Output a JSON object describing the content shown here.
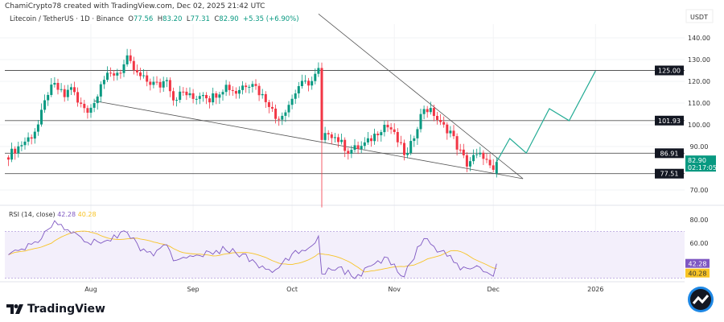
{
  "header": {
    "credit": "ChamiCrypto78 created with TradingView.com, Dec 02, 2025 21:42 UTC",
    "symbol": "Litecoin / TetherUS · 1D · Binance",
    "open_label": "O",
    "open": "77.56",
    "high_label": "H",
    "high": "83.20",
    "low_label": "L",
    "low": "77.31",
    "close_label": "C",
    "close": "82.90",
    "change": "+5.35 (+6.90%)"
  },
  "price_axis": {
    "currency": "USDT",
    "ticks": [
      "140.00",
      "130.00",
      "120.00",
      "110.00",
      "100.00",
      "90.00",
      "70.00"
    ],
    "tick_values": [
      140,
      130,
      120,
      110,
      100,
      90,
      70
    ],
    "levels": [
      {
        "label": "125.00",
        "value": 125
      },
      {
        "label": "101.93",
        "value": 101.93
      },
      {
        "label": "86.91",
        "value": 86.91
      },
      {
        "label": "77.51",
        "value": 77.51
      }
    ],
    "last_price": "82.90",
    "countdown": "02:17:05"
  },
  "time_axis": {
    "ticks": [
      {
        "label": "Aug",
        "date": "2025-08-01"
      },
      {
        "label": "Sep",
        "date": "2025-09-01"
      },
      {
        "label": "Oct",
        "date": "2025-10-01"
      },
      {
        "label": "Nov",
        "date": "2025-11-01"
      },
      {
        "label": "Dec",
        "date": "2025-12-01"
      },
      {
        "label": "2026",
        "date": "2026-01-01"
      }
    ]
  },
  "price_path": [
    [
      "2025-07-07",
      86
    ],
    [
      "2025-07-14",
      95
    ],
    [
      "2025-07-16",
      100
    ],
    [
      "2025-07-19",
      115
    ],
    [
      "2025-07-21",
      118
    ],
    [
      "2025-07-24",
      113
    ],
    [
      "2025-07-26",
      118
    ],
    [
      "2025-07-28",
      110
    ],
    [
      "2025-07-31",
      107
    ],
    [
      "2025-08-02",
      110
    ],
    [
      "2025-08-04",
      120
    ],
    [
      "2025-08-06",
      122
    ],
    [
      "2025-08-10",
      125
    ],
    [
      "2025-08-12",
      130
    ],
    [
      "2025-08-15",
      123
    ],
    [
      "2025-08-18",
      120
    ],
    [
      "2025-08-22",
      118
    ],
    [
      "2025-08-24",
      122
    ],
    [
      "2025-08-26",
      112
    ],
    [
      "2025-08-29",
      115
    ],
    [
      "2025-09-01",
      112
    ],
    [
      "2025-09-04",
      115
    ],
    [
      "2025-09-06",
      112
    ],
    [
      "2025-09-11",
      118
    ],
    [
      "2025-09-14",
      115
    ],
    [
      "2025-09-16",
      118
    ],
    [
      "2025-09-19",
      120
    ],
    [
      "2025-09-21",
      115
    ],
    [
      "2025-09-24",
      110
    ],
    [
      "2025-09-26",
      103
    ],
    [
      "2025-09-28",
      105
    ],
    [
      "2025-10-01",
      112
    ],
    [
      "2025-10-03",
      118
    ],
    [
      "2025-10-07",
      120
    ],
    [
      "2025-10-09",
      125
    ],
    [
      "2025-10-10",
      92
    ],
    [
      "2025-10-12",
      97
    ],
    [
      "2025-10-15",
      93
    ],
    [
      "2025-10-18",
      88
    ],
    [
      "2025-10-22",
      90
    ],
    [
      "2025-10-24",
      92
    ],
    [
      "2025-10-27",
      97
    ],
    [
      "2025-10-29",
      100
    ],
    [
      "2025-10-31",
      98
    ],
    [
      "2025-11-01",
      95
    ],
    [
      "2025-11-04",
      87
    ],
    [
      "2025-11-05",
      86
    ],
    [
      "2025-11-08",
      100
    ],
    [
      "2025-11-10",
      108
    ],
    [
      "2025-11-13",
      105
    ],
    [
      "2025-11-15",
      100
    ],
    [
      "2025-11-18",
      97
    ],
    [
      "2025-11-20",
      90
    ],
    [
      "2025-11-23",
      82
    ],
    [
      "2025-11-25",
      85
    ],
    [
      "2025-11-28",
      86
    ],
    [
      "2025-11-30",
      80
    ],
    [
      "2025-12-01",
      77.56
    ],
    [
      "2025-12-02",
      82.9
    ]
  ],
  "trendlines": [
    {
      "from": [
        "2025-10-09",
        151
      ],
      "to": [
        "2025-12-10",
        75.2
      ]
    },
    {
      "from": [
        "2025-08-02",
        111
      ],
      "to": [
        "2025-12-10",
        75.2
      ]
    }
  ],
  "forecast_path": [
    [
      "2025-12-02",
      82.9
    ],
    [
      "2025-12-06",
      93.7
    ],
    [
      "2025-12-11",
      87
    ],
    [
      "2025-12-18",
      107.4
    ],
    [
      "2025-12-24",
      101.9
    ],
    [
      "2026-01-01",
      124.8
    ]
  ],
  "rsi": {
    "label": "RSI (14, close)",
    "value": "42.28",
    "ma_value": "40.28",
    "ticks": [
      "80.00",
      "60.00"
    ],
    "tick_values": [
      80,
      60
    ],
    "band": [
      30,
      70
    ],
    "path": [
      [
        "2025-07-07",
        50
      ],
      [
        "2025-07-12",
        55
      ],
      [
        "2025-07-17",
        65
      ],
      [
        "2025-07-20",
        75
      ],
      [
        "2025-07-22",
        78
      ],
      [
        "2025-07-24",
        72
      ],
      [
        "2025-07-28",
        68
      ],
      [
        "2025-08-01",
        60
      ],
      [
        "2025-08-04",
        62
      ],
      [
        "2025-08-08",
        65
      ],
      [
        "2025-08-12",
        70
      ],
      [
        "2025-08-16",
        55
      ],
      [
        "2025-08-20",
        50
      ],
      [
        "2025-08-24",
        58
      ],
      [
        "2025-08-26",
        45
      ],
      [
        "2025-08-30",
        50
      ],
      [
        "2025-09-02",
        47
      ],
      [
        "2025-09-06",
        52
      ],
      [
        "2025-09-11",
        55
      ],
      [
        "2025-09-16",
        50
      ],
      [
        "2025-09-21",
        40
      ],
      [
        "2025-09-26",
        35
      ],
      [
        "2025-09-30",
        48
      ],
      [
        "2025-10-05",
        55
      ],
      [
        "2025-10-09",
        65
      ],
      [
        "2025-10-10",
        35
      ],
      [
        "2025-10-15",
        40
      ],
      [
        "2025-10-20",
        30
      ],
      [
        "2025-10-25",
        40
      ],
      [
        "2025-10-30",
        47
      ],
      [
        "2025-11-04",
        32
      ],
      [
        "2025-11-08",
        55
      ],
      [
        "2025-11-10",
        65
      ],
      [
        "2025-11-14",
        55
      ],
      [
        "2025-11-17",
        50
      ],
      [
        "2025-11-21",
        38
      ],
      [
        "2025-11-26",
        40
      ],
      [
        "2025-11-29",
        35
      ],
      [
        "2025-12-01",
        30
      ],
      [
        "2025-12-02",
        42.28
      ]
    ]
  },
  "colors": {
    "up": "#089981",
    "down": "#f23645",
    "rsi": "#7e57c2",
    "rsi_ma": "#f7c325",
    "band": "#f3effb",
    "forecast": "#22ab94",
    "level": "#131722"
  },
  "brand": "TradingView"
}
